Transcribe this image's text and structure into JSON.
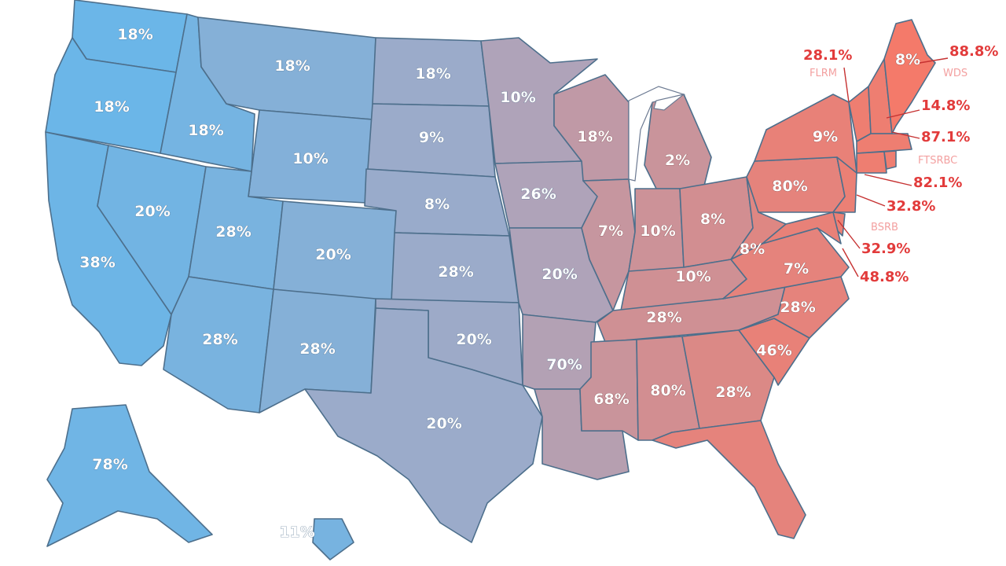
{
  "map": {
    "colors": {
      "low": "#6bb6e8",
      "mid": "#a7a8c2",
      "high": "#f47a6a"
    },
    "states": [
      {
        "id": "WA",
        "label": "18%",
        "tone": 0.0
      },
      {
        "id": "OR",
        "label": "18%",
        "tone": 0.0
      },
      {
        "id": "CA",
        "label": "38%",
        "tone": 0.02
      },
      {
        "id": "ID",
        "label": "18%",
        "tone": 0.08
      },
      {
        "id": "NV",
        "label": "20%",
        "tone": 0.06
      },
      {
        "id": "MT",
        "label": "18%",
        "tone": 0.22
      },
      {
        "id": "WY",
        "label": "10%",
        "tone": 0.2
      },
      {
        "id": "UT",
        "label": "28%",
        "tone": 0.12
      },
      {
        "id": "CO",
        "label": "20%",
        "tone": 0.22
      },
      {
        "id": "AZ",
        "label": "28%",
        "tone": 0.12
      },
      {
        "id": "NM",
        "label": "28%",
        "tone": 0.22
      },
      {
        "id": "ND",
        "label": "18%",
        "tone": 0.4
      },
      {
        "id": "SD",
        "label": "9%",
        "tone": 0.4
      },
      {
        "id": "NE",
        "label": "8%",
        "tone": 0.38
      },
      {
        "id": "KS",
        "label": "28%",
        "tone": 0.4
      },
      {
        "id": "OK",
        "label": "20%",
        "tone": 0.42
      },
      {
        "id": "TX",
        "label": "20%",
        "tone": 0.4
      },
      {
        "id": "MN",
        "label": "10%",
        "tone": 0.55
      },
      {
        "id": "IA",
        "label": "26%",
        "tone": 0.55
      },
      {
        "id": "MO",
        "label": "20%",
        "tone": 0.55
      },
      {
        "id": "AR",
        "label": "70%",
        "tone": 0.58
      },
      {
        "id": "LA",
        "label": "",
        "tone": 0.6
      },
      {
        "id": "WI",
        "label": "18%",
        "tone": 0.66
      },
      {
        "id": "IL",
        "label": "7%",
        "tone": 0.7
      },
      {
        "id": "MI",
        "label": "2%",
        "tone": 0.72
      },
      {
        "id": "IN",
        "label": "10%",
        "tone": 0.74
      },
      {
        "id": "OH",
        "label": "8%",
        "tone": 0.78
      },
      {
        "id": "KY",
        "label": "10%",
        "tone": 0.76
      },
      {
        "id": "TN",
        "label": "28%",
        "tone": 0.76
      },
      {
        "id": "MS",
        "label": "68%",
        "tone": 0.72
      },
      {
        "id": "AL",
        "label": "80%",
        "tone": 0.78
      },
      {
        "id": "GA",
        "label": "28%",
        "tone": 0.84
      },
      {
        "id": "FL",
        "label": "",
        "tone": 0.9
      },
      {
        "id": "SC",
        "label": "46%",
        "tone": 0.92
      },
      {
        "id": "NC",
        "label": "28%",
        "tone": 0.9
      },
      {
        "id": "VA",
        "label": "7%",
        "tone": 0.9
      },
      {
        "id": "WV",
        "label": "8%",
        "tone": 0.86
      },
      {
        "id": "PA",
        "label": "80%",
        "tone": 0.9
      },
      {
        "id": "NY",
        "label": "9%",
        "tone": 0.92
      },
      {
        "id": "NJ",
        "label": "",
        "tone": 0.94
      },
      {
        "id": "DE",
        "label": "",
        "tone": 0.94
      },
      {
        "id": "MD",
        "label": "",
        "tone": 0.92
      },
      {
        "id": "VT",
        "label": "",
        "tone": 0.96
      },
      {
        "id": "NH",
        "label": "",
        "tone": 0.96
      },
      {
        "id": "MA",
        "label": "",
        "tone": 0.96
      },
      {
        "id": "CT",
        "label": "",
        "tone": 0.96
      },
      {
        "id": "RI",
        "label": "",
        "tone": 0.96
      },
      {
        "id": "ME",
        "label": "8%",
        "tone": 1.0
      },
      {
        "id": "AK",
        "label": "78%",
        "tone": 0.04
      },
      {
        "id": "HI",
        "label": "11%",
        "tone": 0.1
      }
    ],
    "callouts": [
      {
        "text": "28.1%"
      },
      {
        "text": "FLRM",
        "sub": true
      },
      {
        "text": "88.8%"
      },
      {
        "text": "WDS",
        "sub": true
      },
      {
        "text": "14.8%"
      },
      {
        "text": "87.1%"
      },
      {
        "text": "FTSRBC",
        "sub": true
      },
      {
        "text": "82.1%"
      },
      {
        "text": "32.8%"
      },
      {
        "text": "BSRB",
        "sub": true
      },
      {
        "text": "32.9%"
      },
      {
        "text": "48.8%"
      }
    ]
  }
}
